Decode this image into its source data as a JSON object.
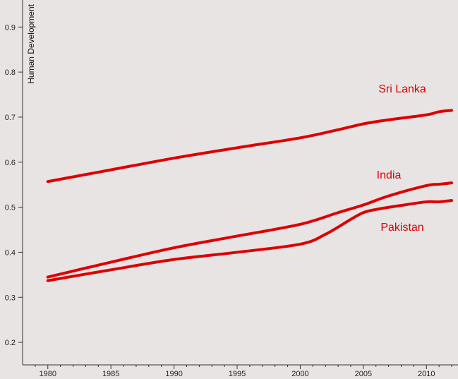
{
  "chart_data": {
    "type": "line",
    "title": "",
    "xlabel": "",
    "ylabel": "Human Development",
    "xlim": [
      1978,
      2012.5
    ],
    "ylim": [
      0.15,
      0.96
    ],
    "x_ticks": [
      1980,
      1985,
      1990,
      1995,
      2000,
      2005,
      2010
    ],
    "y_ticks": [
      0.2,
      0.3,
      0.4,
      0.5,
      0.6,
      0.7,
      0.8,
      0.9
    ],
    "grid": false,
    "legend": "inline labels",
    "line_color": "#dd0000",
    "series": [
      {
        "name": "Sri Lanka",
        "x": [
          1980,
          1985,
          1990,
          1995,
          2000,
          2003,
          2005,
          2007,
          2010,
          2011,
          2012
        ],
        "y": [
          0.557,
          0.583,
          0.609,
          0.632,
          0.654,
          0.672,
          0.685,
          0.694,
          0.705,
          0.712,
          0.715
        ]
      },
      {
        "name": "India",
        "x": [
          1980,
          1985,
          1990,
          1995,
          2000,
          2003,
          2005,
          2007,
          2010,
          2011,
          2012
        ],
        "y": [
          0.345,
          0.378,
          0.41,
          0.436,
          0.462,
          0.488,
          0.505,
          0.525,
          0.548,
          0.551,
          0.554
        ]
      },
      {
        "name": "Pakistan",
        "x": [
          1980,
          1985,
          1990,
          1995,
          2000,
          2002,
          2004,
          2005,
          2006,
          2008,
          2010,
          2011,
          2012
        ],
        "y": [
          0.337,
          0.361,
          0.384,
          0.4,
          0.418,
          0.44,
          0.473,
          0.488,
          0.495,
          0.504,
          0.512,
          0.512,
          0.515
        ]
      }
    ]
  }
}
